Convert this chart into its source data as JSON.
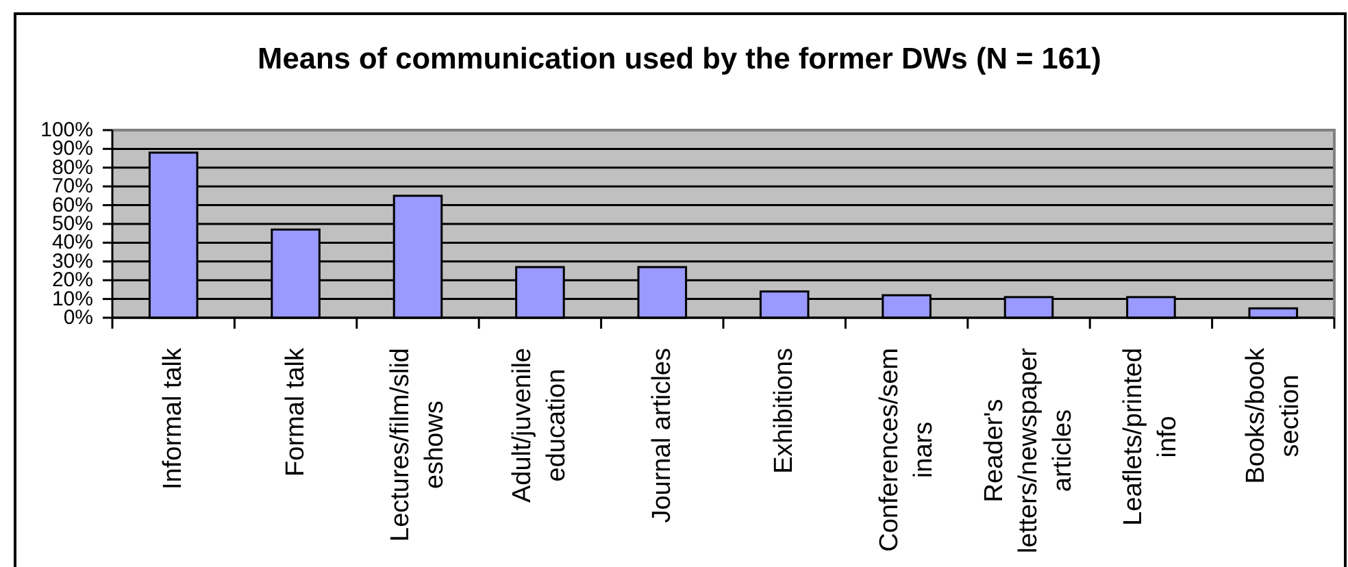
{
  "chart_data": {
    "type": "bar",
    "title": "Means of communication used by the former DWs (N = 161)",
    "categories": [
      "Informal talk",
      "Formal talk",
      "Lectures/film/slid\neshows",
      "Adult/juvenile\neducation",
      "Journal articles",
      "Exhibitions",
      "Conferences/sem\ninars",
      "Reader's\nletters/newspaper\narticles",
      "Leaflets/printed\ninfo",
      "Books/book\nsection"
    ],
    "values": [
      88,
      47,
      65,
      27,
      27,
      14,
      12,
      11,
      11,
      5
    ],
    "color": "#9999ff",
    "ylim": [
      0,
      100
    ],
    "yticks": [
      {
        "value": 0,
        "label": "0%"
      },
      {
        "value": 10,
        "label": "10%"
      },
      {
        "value": 20,
        "label": "20%"
      },
      {
        "value": 30,
        "label": "30%"
      },
      {
        "value": 40,
        "label": "40%"
      },
      {
        "value": 50,
        "label": "50%"
      },
      {
        "value": 60,
        "label": "60%"
      },
      {
        "value": 70,
        "label": "70%"
      },
      {
        "value": 80,
        "label": "80%"
      },
      {
        "value": 90,
        "label": "90%"
      },
      {
        "value": 100,
        "label": "100%"
      }
    ],
    "grid": "y"
  }
}
